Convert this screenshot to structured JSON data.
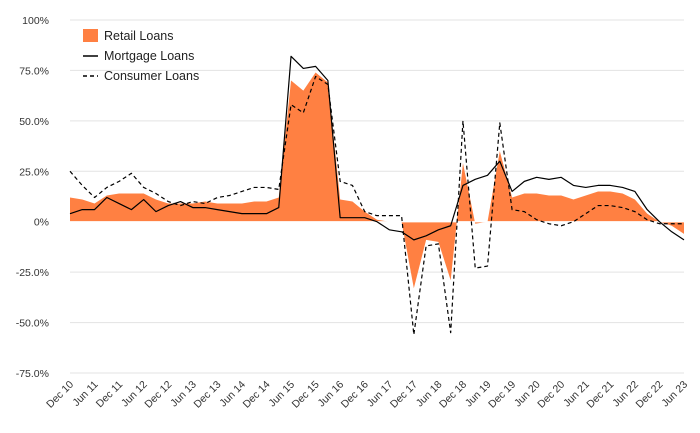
{
  "colors": {
    "retail": "#FF8042",
    "mortgage": "#000000",
    "consumer": "#000000",
    "grid": "#e3e3e3"
  },
  "legend": [
    {
      "key": "retail",
      "label": "Retail Loans",
      "style": "swatch"
    },
    {
      "key": "mortgage",
      "label": "Mortgage Loans",
      "style": "solid"
    },
    {
      "key": "consumer",
      "label": "Consumer Loans",
      "style": "dashed"
    }
  ],
  "chart_data": {
    "type": "area",
    "title": "",
    "xlabel": "",
    "ylabel": "",
    "ylim": [
      -75,
      100
    ],
    "grid": true,
    "legend_position": "top-left",
    "y_ticks": [
      {
        "value": 100,
        "label": "100%"
      },
      {
        "value": 75,
        "label": "75.0%"
      },
      {
        "value": 50,
        "label": "50.0%"
      },
      {
        "value": 25,
        "label": "25.0%"
      },
      {
        "value": 0,
        "label": "0%"
      },
      {
        "value": -25,
        "label": "-25.0%"
      },
      {
        "value": -50,
        "label": "-50.0%"
      },
      {
        "value": -75,
        "label": "-75.0%"
      }
    ],
    "x_ticks": [
      {
        "index": 0,
        "label": "Dec 10"
      },
      {
        "index": 2,
        "label": "Jun 11"
      },
      {
        "index": 4,
        "label": "Dec 11"
      },
      {
        "index": 6,
        "label": "Jun 12"
      },
      {
        "index": 8,
        "label": "Dec 12"
      },
      {
        "index": 10,
        "label": "Jun 13"
      },
      {
        "index": 12,
        "label": "Dec 13"
      },
      {
        "index": 14,
        "label": "Jun 14"
      },
      {
        "index": 16,
        "label": "Dec 14"
      },
      {
        "index": 18,
        "label": "Jun 15"
      },
      {
        "index": 20,
        "label": "Dec 15"
      },
      {
        "index": 22,
        "label": "Jun 16"
      },
      {
        "index": 24,
        "label": "Dec 16"
      },
      {
        "index": 26,
        "label": "Jun 17"
      },
      {
        "index": 28,
        "label": "Dec 17"
      },
      {
        "index": 30,
        "label": "Jun 18"
      },
      {
        "index": 32,
        "label": "Dec 18"
      },
      {
        "index": 34,
        "label": "Jun 19"
      },
      {
        "index": 36,
        "label": "Dec 19"
      },
      {
        "index": 38,
        "label": "Jun 20"
      },
      {
        "index": 40,
        "label": "Dec 20"
      },
      {
        "index": 42,
        "label": "Jun 21"
      },
      {
        "index": 44,
        "label": "Dec 21"
      },
      {
        "index": 46,
        "label": "Jun 22"
      },
      {
        "index": 48,
        "label": "Dec 22"
      },
      {
        "index": 50,
        "label": "Jun 23"
      }
    ],
    "series": [
      {
        "name": "Retail Loans",
        "kind": "area",
        "color": "#FF8042",
        "values": [
          12,
          11,
          9,
          13,
          14,
          14,
          14,
          11,
          9,
          9,
          9,
          10,
          9,
          9,
          9,
          10,
          10,
          12,
          70,
          65,
          74,
          69,
          11,
          10,
          5,
          1,
          0,
          0,
          -33,
          -9,
          -10,
          -29,
          29,
          -1,
          0,
          35,
          12,
          14,
          14,
          13,
          13,
          11,
          13,
          15,
          15,
          14,
          11,
          4,
          0,
          -2,
          -6
        ]
      },
      {
        "name": "Mortgage Loans",
        "kind": "line",
        "color": "#000000",
        "values": [
          4,
          6,
          6,
          12,
          9,
          6,
          11,
          5,
          8,
          10,
          7,
          7,
          6,
          5,
          4,
          4,
          4,
          7,
          82,
          76,
          77,
          70,
          2,
          2,
          2,
          0,
          -4,
          -5,
          -9,
          -7,
          -4,
          -2,
          18,
          21,
          23,
          30,
          15,
          20,
          22,
          21,
          22,
          18,
          17,
          18,
          18,
          17,
          15,
          6,
          0,
          -5,
          -9
        ]
      },
      {
        "name": "Consumer Loans",
        "kind": "line",
        "color": "#000000",
        "values": [
          25,
          18,
          12,
          17,
          20,
          24,
          17,
          14,
          10,
          8,
          10,
          9,
          12,
          13,
          15,
          17,
          17,
          16,
          58,
          54,
          72,
          68,
          20,
          18,
          5,
          3,
          3,
          3,
          -56,
          -12,
          -11,
          -55,
          50,
          -23,
          -22,
          49,
          6,
          5,
          1,
          -1,
          -2,
          0,
          4,
          8,
          8,
          7,
          5,
          1,
          -1,
          -1,
          -1
        ]
      }
    ]
  }
}
